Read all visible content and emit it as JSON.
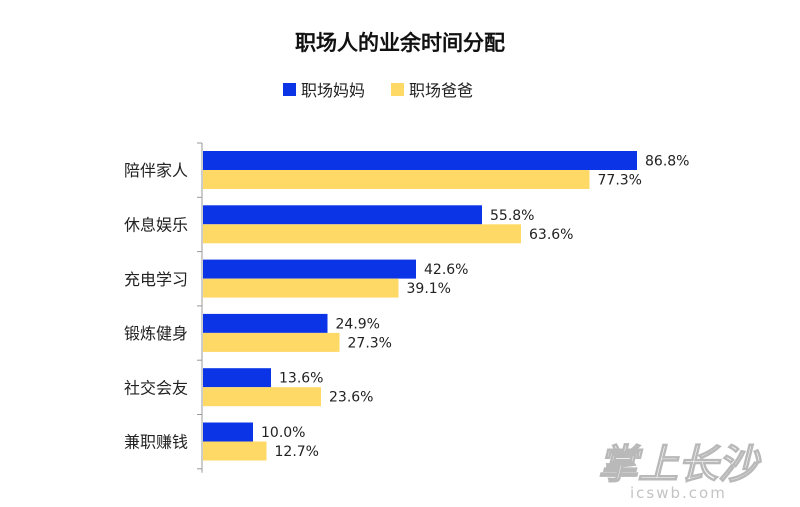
{
  "chart_data": {
    "type": "bar",
    "orientation": "horizontal",
    "title": "职场人的业余时间分配",
    "categories": [
      "陪伴家人",
      "休息娱乐",
      "充电学习",
      "锻炼健身",
      "社交会友",
      "兼职赚钱"
    ],
    "series": [
      {
        "name": "职场妈妈",
        "color": "#0a34e6",
        "values": [
          86.8,
          55.8,
          42.6,
          24.9,
          13.6,
          10.0
        ],
        "labels": [
          "86.8%",
          "55.8%",
          "42.6%",
          "24.9%",
          "13.6%",
          "10.0%"
        ]
      },
      {
        "name": "职场爸爸",
        "color": "#ffd966",
        "values": [
          77.3,
          63.6,
          39.1,
          27.3,
          23.6,
          12.7
        ],
        "labels": [
          "77.3%",
          "63.6%",
          "39.1%",
          "27.3%",
          "23.6%",
          "12.7%"
        ]
      }
    ],
    "xlim": [
      0,
      100
    ],
    "grid": false,
    "legend_position": "top"
  },
  "watermark": {
    "main": "掌上长沙",
    "sub": "icswb.com"
  }
}
